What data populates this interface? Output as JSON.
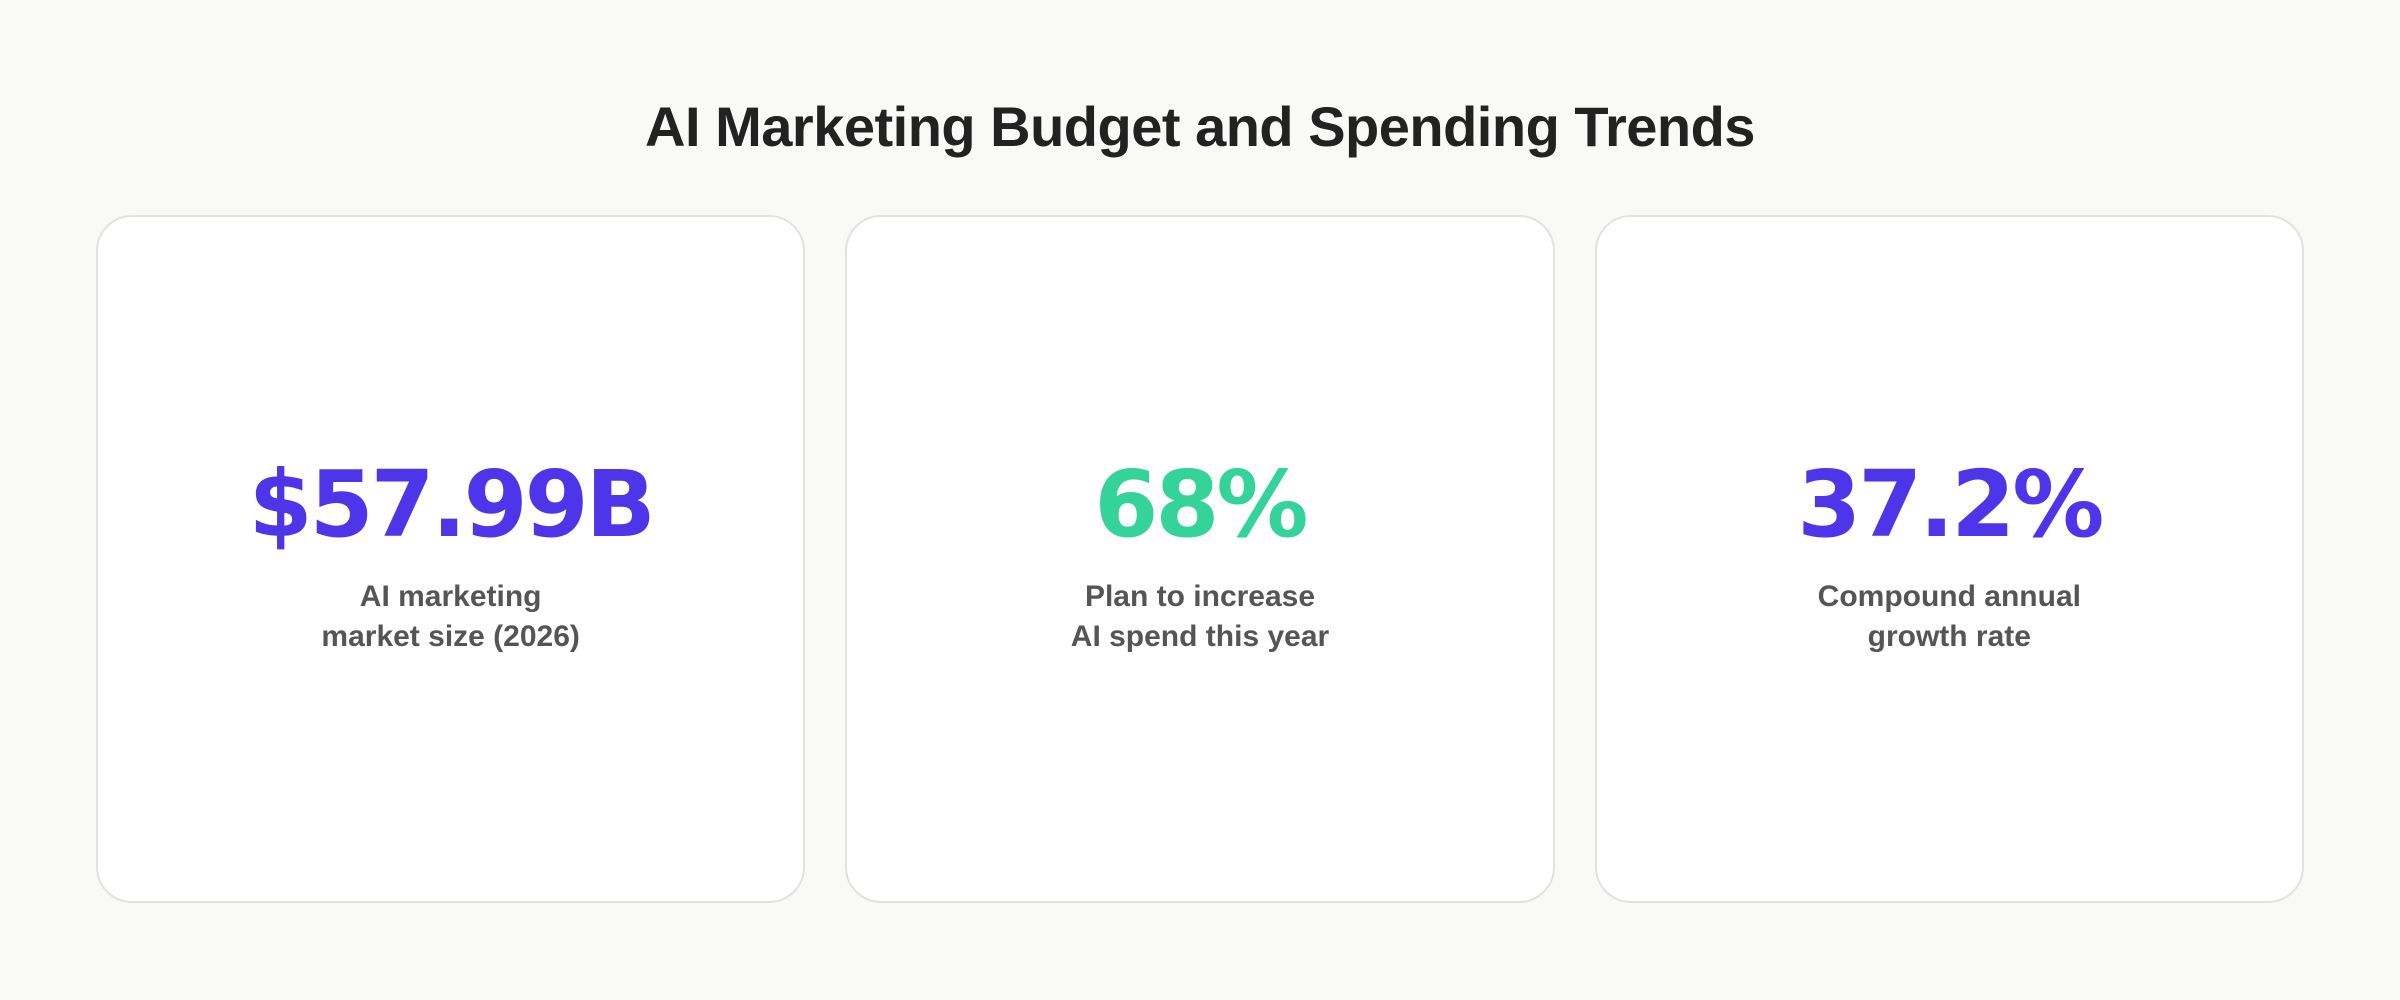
{
  "title": "AI Marketing Budget and Spending Trends",
  "colors": {
    "background": "#f9f9f8",
    "card": "#ffffff",
    "card_border": "#e2e2e0",
    "title": "#222222",
    "label": "#555555",
    "purple": "#4f35ea",
    "green": "#34d399"
  },
  "stats": [
    {
      "value": "$57.99B",
      "label_lines": [
        "AI marketing",
        "market size (2026)"
      ],
      "color": "#4f35ea"
    },
    {
      "value": "68%",
      "label_lines": [
        "Plan to increase",
        "AI spend this year"
      ],
      "color": "#34d399"
    },
    {
      "value": "37.2%",
      "label_lines": [
        "Compound annual",
        "growth rate"
      ],
      "color": "#4f35ea"
    }
  ]
}
